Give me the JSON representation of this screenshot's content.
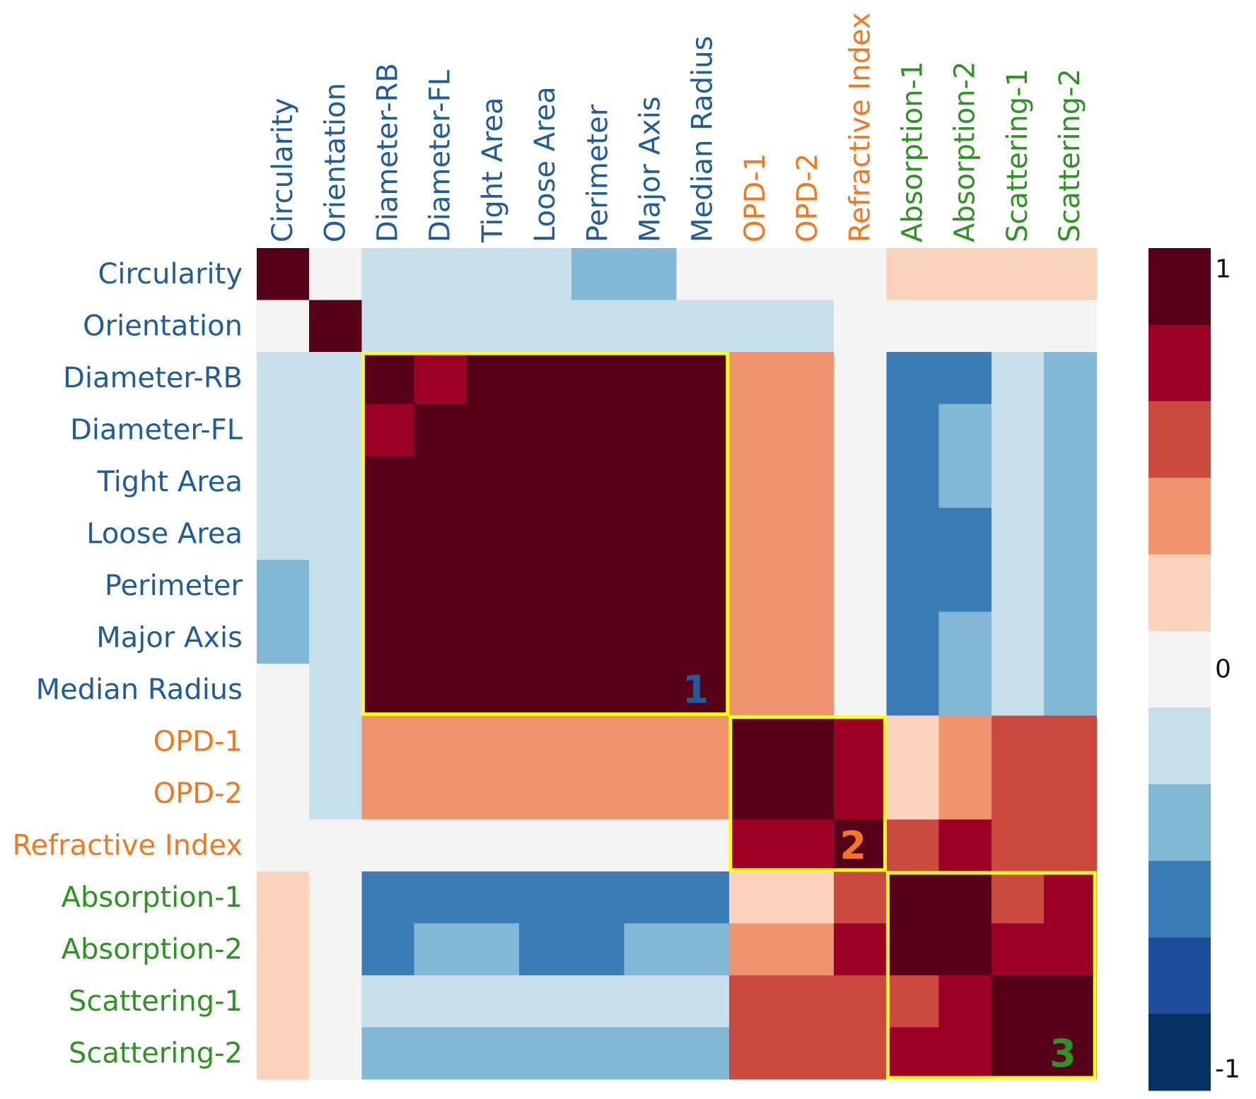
{
  "chart_data": {
    "type": "heatmap",
    "title": "",
    "xlabel": "",
    "ylabel": "",
    "variables": [
      {
        "name": "Circularity",
        "group": "geometry"
      },
      {
        "name": "Orientation",
        "group": "geometry"
      },
      {
        "name": "Diameter-RB",
        "group": "geometry"
      },
      {
        "name": "Diameter-FL",
        "group": "geometry"
      },
      {
        "name": "Tight Area",
        "group": "geometry"
      },
      {
        "name": "Loose Area",
        "group": "geometry"
      },
      {
        "name": "Perimeter",
        "group": "geometry"
      },
      {
        "name": "Major Axis",
        "group": "geometry"
      },
      {
        "name": "Median Radius",
        "group": "geometry"
      },
      {
        "name": "OPD-1",
        "group": "refractive"
      },
      {
        "name": "OPD-2",
        "group": "refractive"
      },
      {
        "name": "Refractive Index",
        "group": "refractive"
      },
      {
        "name": "Absorption-1",
        "group": "optical"
      },
      {
        "name": "Absorption-2",
        "group": "optical"
      },
      {
        "name": "Scattering-1",
        "group": "optical"
      },
      {
        "name": "Scattering-2",
        "group": "optical"
      }
    ],
    "group_colors": {
      "geometry": "#1f5c99",
      "refractive": "#f07820",
      "optical": "#2e9323"
    },
    "colorbar": {
      "min": -1,
      "max": 1,
      "tick_labels": [
        "1",
        "0",
        "-1"
      ],
      "tick_values": [
        1,
        0,
        -1
      ],
      "colors": [
        "#053061",
        "#1c4e9c",
        "#3a7db6",
        "#82b7d6",
        "#c8dfec",
        "#f4f4f4",
        "#fbd2bc",
        "#ef946e",
        "#cb4a3f",
        "#9c0024",
        "#56001a"
      ]
    },
    "matrix": [
      [
        1,
        0,
        -0.2,
        -0.2,
        -0.2,
        -0.2,
        -0.4,
        -0.4,
        0,
        0,
        0,
        0,
        0.2,
        0.2,
        0.2,
        0.2
      ],
      [
        0,
        1,
        -0.2,
        -0.2,
        -0.2,
        -0.2,
        -0.2,
        -0.2,
        -0.2,
        -0.2,
        -0.2,
        0,
        0,
        0,
        0,
        0
      ],
      [
        -0.2,
        -0.2,
        1,
        0.8,
        1,
        1,
        1,
        1,
        1,
        0.4,
        0.4,
        0,
        -0.6,
        -0.6,
        -0.2,
        -0.4
      ],
      [
        -0.2,
        -0.2,
        0.8,
        1,
        1,
        1,
        1,
        1,
        1,
        0.4,
        0.4,
        0,
        -0.6,
        -0.4,
        -0.2,
        -0.4
      ],
      [
        -0.2,
        -0.2,
        1,
        1,
        1,
        1,
        1,
        1,
        1,
        0.4,
        0.4,
        0,
        -0.6,
        -0.4,
        -0.2,
        -0.4
      ],
      [
        -0.2,
        -0.2,
        1,
        1,
        1,
        1,
        1,
        1,
        1,
        0.4,
        0.4,
        0,
        -0.6,
        -0.6,
        -0.2,
        -0.4
      ],
      [
        -0.4,
        -0.2,
        1,
        1,
        1,
        1,
        1,
        1,
        1,
        0.4,
        0.4,
        0,
        -0.6,
        -0.6,
        -0.2,
        -0.4
      ],
      [
        -0.4,
        -0.2,
        1,
        1,
        1,
        1,
        1,
        1,
        1,
        0.4,
        0.4,
        0,
        -0.6,
        -0.4,
        -0.2,
        -0.4
      ],
      [
        0,
        -0.2,
        1,
        1,
        1,
        1,
        1,
        1,
        1,
        0.4,
        0.4,
        0,
        -0.6,
        -0.4,
        -0.2,
        -0.4
      ],
      [
        0,
        -0.2,
        0.4,
        0.4,
        0.4,
        0.4,
        0.4,
        0.4,
        0.4,
        1,
        1,
        0.8,
        0.2,
        0.4,
        0.6,
        0.6
      ],
      [
        0,
        -0.2,
        0.4,
        0.4,
        0.4,
        0.4,
        0.4,
        0.4,
        0.4,
        1,
        1,
        0.8,
        0.2,
        0.4,
        0.6,
        0.6
      ],
      [
        0,
        0,
        0,
        0,
        0,
        0,
        0,
        0,
        0,
        0.8,
        0.8,
        1,
        0.6,
        0.8,
        0.6,
        0.6
      ],
      [
        0.2,
        0,
        -0.6,
        -0.6,
        -0.6,
        -0.6,
        -0.6,
        -0.6,
        -0.6,
        0.2,
        0.2,
        0.6,
        1,
        1,
        0.6,
        0.8
      ],
      [
        0.2,
        0,
        -0.6,
        -0.4,
        -0.4,
        -0.6,
        -0.6,
        -0.4,
        -0.4,
        0.4,
        0.4,
        0.8,
        1,
        1,
        0.8,
        0.8
      ],
      [
        0.2,
        0,
        -0.2,
        -0.2,
        -0.2,
        -0.2,
        -0.2,
        -0.2,
        -0.2,
        0.6,
        0.6,
        0.6,
        0.6,
        0.8,
        1,
        1
      ],
      [
        0.2,
        0,
        -0.4,
        -0.4,
        -0.4,
        -0.4,
        -0.4,
        -0.4,
        -0.4,
        0.6,
        0.6,
        0.6,
        0.8,
        0.8,
        1,
        1
      ]
    ],
    "blocks": [
      {
        "label": "1",
        "start": 2,
        "end": 8,
        "label_color": "#1f5c99"
      },
      {
        "label": "2",
        "start": 9,
        "end": 11,
        "label_color": "#f07820"
      },
      {
        "label": "3",
        "start": 12,
        "end": 15,
        "label_color": "#2e9323"
      }
    ],
    "block_outline_color": "#ffff1a",
    "legend": "right"
  }
}
